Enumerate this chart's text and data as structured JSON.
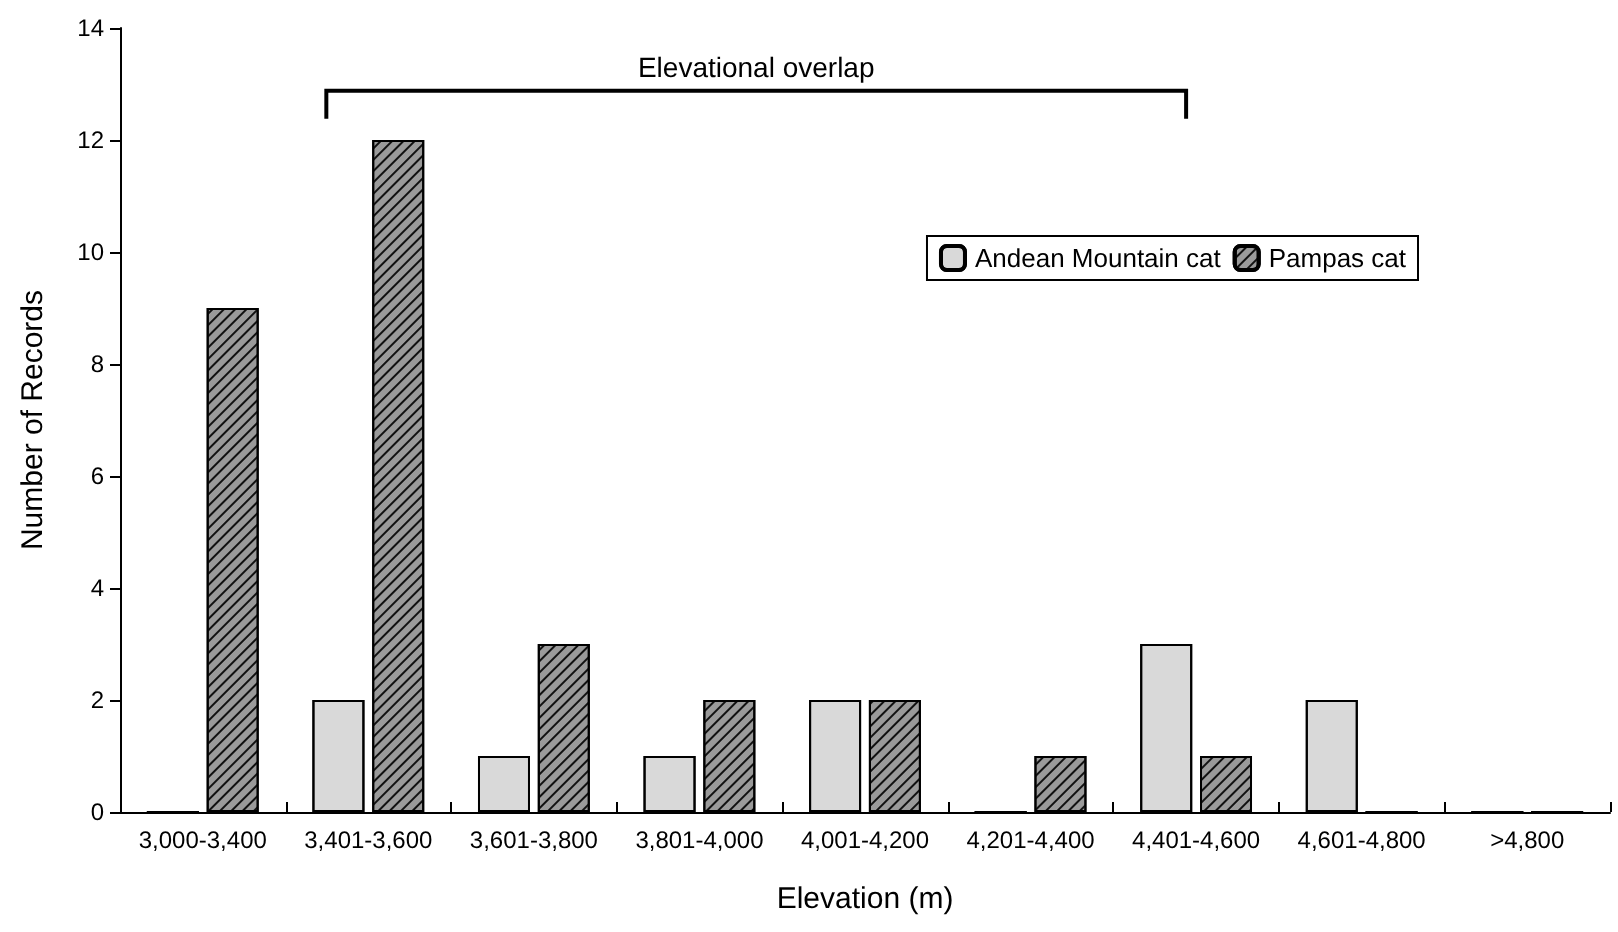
{
  "chart_data": {
    "type": "bar",
    "xlabel": "Elevation (m)",
    "ylabel": "Number of Records",
    "categories": [
      "3,000-3,400",
      "3,401-3,600",
      "3,601-3,800",
      "3,801-4,000",
      "4,001-4,200",
      "4,201-4,400",
      "4,401-4,600",
      "4,601-4,800",
      ">4,800"
    ],
    "series": [
      {
        "name": "Andean Mountain cat",
        "color": "#d9d9d9",
        "values": [
          0,
          2,
          1,
          1,
          2,
          0,
          3,
          2,
          0
        ]
      },
      {
        "name": "Pampas cat",
        "color": "#9a9a9a",
        "values": [
          9,
          12,
          3,
          2,
          2,
          1,
          1,
          0,
          0
        ]
      }
    ],
    "ylim": [
      0,
      14
    ],
    "yticks": [
      0,
      2,
      4,
      6,
      8,
      10,
      12,
      14
    ],
    "grid": false,
    "legend": "right",
    "annotations": [
      "Elevational overlap"
    ]
  }
}
